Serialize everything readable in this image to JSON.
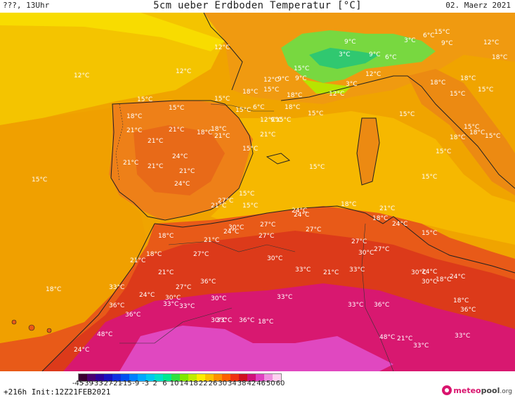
{
  "header": {
    "left_text": "???, 13Uhr",
    "title": "5cm ueber Erdboden Temperatur [°C]",
    "date": "02. Maerz 2021"
  },
  "map": {
    "region": "Western Mediterranean / Iberia / North Africa",
    "temperature_labels": [
      "12°C",
      "12°C",
      "12°C",
      "15°C",
      "9°C",
      "3°C",
      "9°C",
      "6°C",
      "3°C",
      "6°C",
      "15°C",
      "9°C",
      "12°C",
      "18°C",
      "12°C",
      "9°C",
      "9°C",
      "12°C",
      "3°C",
      "15°C",
      "18°C",
      "15°C",
      "18°C",
      "12°C",
      "15°C",
      "18°C",
      "15°C",
      "15°C",
      "18°C",
      "15°C",
      "21°C",
      "15°C",
      "12°C",
      "6°C",
      "15°C",
      "9°C",
      "15°C",
      "21°C",
      "18°C",
      "18°C",
      "21°C",
      "18°C",
      "21°C",
      "15°C",
      "18°C",
      "18°C",
      "15°C",
      "21°C",
      "21°C",
      "24°C",
      "21°C",
      "15°C",
      "15°C",
      "15°C",
      "15°C",
      "21°C",
      "24°C",
      "18°C",
      "15°C",
      "15°C",
      "27°C",
      "21°C",
      "15°C",
      "18°C",
      "21°C",
      "24°C",
      "15°C",
      "18°C",
      "24°C",
      "27°C",
      "30°C",
      "27°C",
      "24°C",
      "18°C",
      "24°C",
      "21°C",
      "27°C",
      "27°C",
      "27°C",
      "15°C",
      "18°C",
      "21°C",
      "27°C",
      "30°C",
      "33°C",
      "21°C",
      "24°C",
      "30°C",
      "33°C",
      "30°C",
      "24°C",
      "21°C",
      "18°C",
      "18°C",
      "30°C",
      "33°C",
      "27°C",
      "36°C",
      "30°C",
      "30°C",
      "33°C",
      "24°C",
      "36°C",
      "36°C",
      "33°C",
      "33°C",
      "30°C",
      "33°C",
      "36°C",
      "33°C",
      "36°C",
      "18°C",
      "18°C",
      "36°C",
      "33°C",
      "21°C",
      "48°C",
      "48°C",
      "33°C",
      "24°C"
    ]
  },
  "legend": {
    "ticks": [
      "-45",
      "-39",
      "-33",
      "-27",
      "-21",
      "-15",
      "-9",
      "-3",
      "2",
      "6",
      "10",
      "14",
      "18",
      "22",
      "26",
      "30",
      "34",
      "38",
      "42",
      "46",
      "50",
      "60"
    ],
    "colors": [
      "#3a0030",
      "#4a0070",
      "#30009a",
      "#1a10c0",
      "#1030e0",
      "#0050f0",
      "#0080ff",
      "#00a8ff",
      "#00c8f0",
      "#00e0c8",
      "#00e890",
      "#30e040",
      "#80e800",
      "#c0ec00",
      "#ffec00",
      "#ffc000",
      "#ff9000",
      "#ff6000",
      "#f03010",
      "#d01020",
      "#d0107a",
      "#e040c0",
      "#f090e0",
      "#ffd0f0"
    ]
  },
  "footer": {
    "run_info": "+216h Init:12Z21FEB2021",
    "logo_part1": "meteo",
    "logo_part2": "pool",
    "logo_part3": ".org"
  }
}
